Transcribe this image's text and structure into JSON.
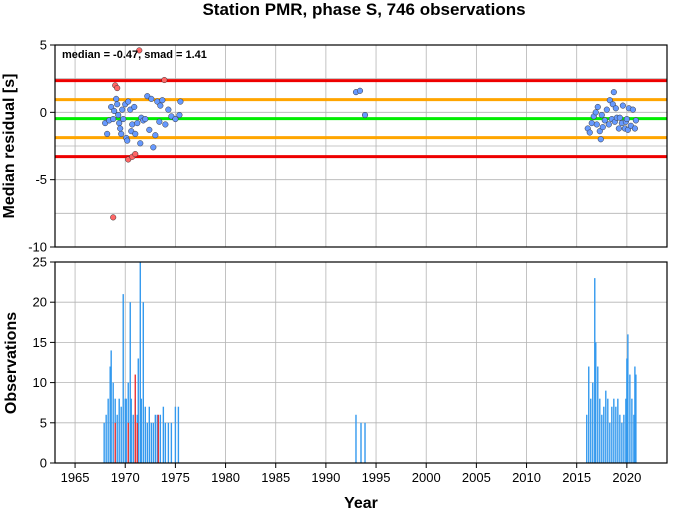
{
  "chart_data": [
    {
      "type": "scatter",
      "title": "Station PMR, phase S, 746 observations",
      "annotation": "median = -0.47, smad = 1.41",
      "xlabel": "",
      "ylabel": "Median residual [s]",
      "xlim": [
        1963,
        2024
      ],
      "ylim": [
        -10,
        5
      ],
      "x_ticks": [
        1965,
        1970,
        1975,
        1980,
        1985,
        1990,
        1995,
        2000,
        2005,
        2010,
        2015,
        2020
      ],
      "y_ticks": [
        -10,
        -5,
        0,
        5
      ],
      "grid": true,
      "reference_lines": [
        {
          "role": "median",
          "y": -0.47,
          "color": "#00ee00"
        },
        {
          "role": "inner-band-upper",
          "y": 0.94,
          "color": "#ffa500"
        },
        {
          "role": "inner-band-lower",
          "y": -1.88,
          "color": "#ffa500"
        },
        {
          "role": "outer-band-upper",
          "y": 2.35,
          "color": "#ee0000"
        },
        {
          "role": "outer-band-lower",
          "y": -3.29,
          "color": "#ee0000"
        }
      ],
      "series": [
        {
          "color": "#6699ff",
          "points": [
            [
              1968.0,
              -0.8
            ],
            [
              1968.2,
              -1.6
            ],
            [
              1968.4,
              -0.6
            ],
            [
              1968.6,
              0.4
            ],
            [
              1968.8,
              -0.5
            ],
            [
              1968.9,
              0.1
            ],
            [
              1969.1,
              1.0
            ],
            [
              1969.2,
              0.6
            ],
            [
              1969.3,
              -0.2
            ],
            [
              1969.4,
              -0.8
            ],
            [
              1969.5,
              -1.2
            ],
            [
              1969.6,
              -1.6
            ],
            [
              1969.7,
              0.2
            ],
            [
              1969.8,
              -0.5
            ],
            [
              1970.0,
              0.6
            ],
            [
              1970.1,
              -1.9
            ],
            [
              1970.2,
              -2.1
            ],
            [
              1970.3,
              0.8
            ],
            [
              1970.5,
              0.2
            ],
            [
              1970.6,
              -1.4
            ],
            [
              1970.7,
              -0.9
            ],
            [
              1970.9,
              0.4
            ],
            [
              1971.0,
              -1.6
            ],
            [
              1971.2,
              -0.8
            ],
            [
              1971.5,
              -2.3
            ],
            [
              1971.6,
              -0.4
            ],
            [
              1971.8,
              -0.6
            ],
            [
              1972.0,
              -0.5
            ],
            [
              1972.2,
              1.2
            ],
            [
              1972.4,
              -1.3
            ],
            [
              1972.6,
              1.0
            ],
            [
              1972.8,
              -2.6
            ],
            [
              1973.0,
              -1.7
            ],
            [
              1973.2,
              0.8
            ],
            [
              1973.4,
              -0.7
            ],
            [
              1973.5,
              0.5
            ],
            [
              1973.7,
              0.9
            ],
            [
              1974.0,
              -0.9
            ],
            [
              1974.3,
              0.2
            ],
            [
              1974.6,
              -0.3
            ],
            [
              1975.0,
              -0.5
            ],
            [
              1975.4,
              -0.2
            ],
            [
              1975.5,
              0.8
            ],
            [
              1993.0,
              1.5
            ],
            [
              1993.4,
              1.6
            ],
            [
              1993.9,
              -0.2
            ],
            [
              2016.1,
              -1.2
            ],
            [
              2016.3,
              -1.5
            ],
            [
              2016.5,
              -0.8
            ],
            [
              2016.7,
              -0.3
            ],
            [
              2016.9,
              0.0
            ],
            [
              2017.0,
              -0.9
            ],
            [
              2017.1,
              0.4
            ],
            [
              2017.3,
              -1.4
            ],
            [
              2017.4,
              -2.0
            ],
            [
              2017.5,
              -0.2
            ],
            [
              2017.6,
              -1.1
            ],
            [
              2017.8,
              -0.6
            ],
            [
              2018.0,
              0.2
            ],
            [
              2018.2,
              -0.9
            ],
            [
              2018.3,
              0.9
            ],
            [
              2018.5,
              -0.5
            ],
            [
              2018.6,
              0.6
            ],
            [
              2018.7,
              1.5
            ],
            [
              2018.8,
              -0.7
            ],
            [
              2018.9,
              0.3
            ],
            [
              2019.0,
              -0.4
            ],
            [
              2019.2,
              -1.2
            ],
            [
              2019.3,
              -0.4
            ],
            [
              2019.5,
              -0.8
            ],
            [
              2019.6,
              0.5
            ],
            [
              2019.8,
              -1.2
            ],
            [
              2019.9,
              -0.7
            ],
            [
              2020.0,
              -0.5
            ],
            [
              2020.1,
              -1.3
            ],
            [
              2020.2,
              0.3
            ],
            [
              2020.4,
              -1.0
            ],
            [
              2020.6,
              0.2
            ],
            [
              2020.8,
              -1.2
            ],
            [
              2020.9,
              -0.6
            ]
          ]
        },
        {
          "color": "#ff6666",
          "points": [
            [
              1968.8,
              -7.8
            ],
            [
              1969.0,
              2.0
            ],
            [
              1969.2,
              1.8
            ],
            [
              1970.3,
              -3.5
            ],
            [
              1970.7,
              -3.3
            ],
            [
              1971.0,
              -3.1
            ],
            [
              1971.4,
              4.6
            ],
            [
              1973.9,
              2.4
            ]
          ]
        }
      ]
    },
    {
      "type": "bar",
      "xlabel": "Year",
      "ylabel": "Observations",
      "xlim": [
        1963,
        2024
      ],
      "ylim": [
        0,
        25
      ],
      "x_ticks": [
        1965,
        1970,
        1975,
        1980,
        1985,
        1990,
        1995,
        2000,
        2005,
        2010,
        2015,
        2020
      ],
      "y_ticks": [
        0,
        5,
        10,
        15,
        20,
        25
      ],
      "grid": true,
      "series": [
        {
          "color": "#3399ee",
          "points": [
            [
              1967.9,
              5
            ],
            [
              1968.1,
              6
            ],
            [
              1968.3,
              8
            ],
            [
              1968.5,
              12
            ],
            [
              1968.6,
              14
            ],
            [
              1968.8,
              10
            ],
            [
              1969.0,
              8
            ],
            [
              1969.2,
              6
            ],
            [
              1969.4,
              8
            ],
            [
              1969.6,
              7
            ],
            [
              1969.8,
              21
            ],
            [
              1970.0,
              8
            ],
            [
              1970.1,
              8
            ],
            [
              1970.3,
              10
            ],
            [
              1970.5,
              20
            ],
            [
              1970.6,
              8
            ],
            [
              1970.8,
              6
            ],
            [
              1971.0,
              8
            ],
            [
              1971.2,
              6
            ],
            [
              1971.3,
              13
            ],
            [
              1971.5,
              25
            ],
            [
              1971.6,
              8
            ],
            [
              1971.8,
              20
            ],
            [
              1972.0,
              7
            ],
            [
              1972.2,
              5
            ],
            [
              1972.4,
              7
            ],
            [
              1972.6,
              5
            ],
            [
              1972.8,
              5
            ],
            [
              1973.0,
              6
            ],
            [
              1973.2,
              6
            ],
            [
              1973.5,
              6
            ],
            [
              1973.8,
              7
            ],
            [
              1974.0,
              5
            ],
            [
              1974.3,
              5
            ],
            [
              1974.6,
              5
            ],
            [
              1975.0,
              7
            ],
            [
              1975.3,
              7
            ],
            [
              1993.0,
              6
            ],
            [
              1993.5,
              5
            ],
            [
              1993.9,
              5
            ],
            [
              2016.0,
              6
            ],
            [
              2016.2,
              12
            ],
            [
              2016.4,
              8
            ],
            [
              2016.6,
              10
            ],
            [
              2016.8,
              23
            ],
            [
              2016.9,
              15
            ],
            [
              2017.1,
              12
            ],
            [
              2017.3,
              8
            ],
            [
              2017.5,
              6
            ],
            [
              2017.7,
              7
            ],
            [
              2017.9,
              9
            ],
            [
              2018.1,
              8
            ],
            [
              2018.3,
              5
            ],
            [
              2018.5,
              7
            ],
            [
              2018.7,
              8
            ],
            [
              2018.9,
              7
            ],
            [
              2019.1,
              8
            ],
            [
              2019.3,
              6
            ],
            [
              2019.5,
              5
            ],
            [
              2019.7,
              6
            ],
            [
              2019.9,
              8
            ],
            [
              2020.0,
              13
            ],
            [
              2020.1,
              16
            ],
            [
              2020.3,
              11
            ],
            [
              2020.5,
              8
            ],
            [
              2020.7,
              6
            ],
            [
              2020.8,
              12
            ],
            [
              2020.9,
              11
            ]
          ]
        },
        {
          "color": "#ee3333",
          "points": [
            [
              1969.0,
              5
            ],
            [
              1970.3,
              5
            ],
            [
              1971.0,
              11
            ],
            [
              1971.2,
              5
            ],
            [
              1973.3,
              6
            ]
          ]
        }
      ]
    }
  ]
}
